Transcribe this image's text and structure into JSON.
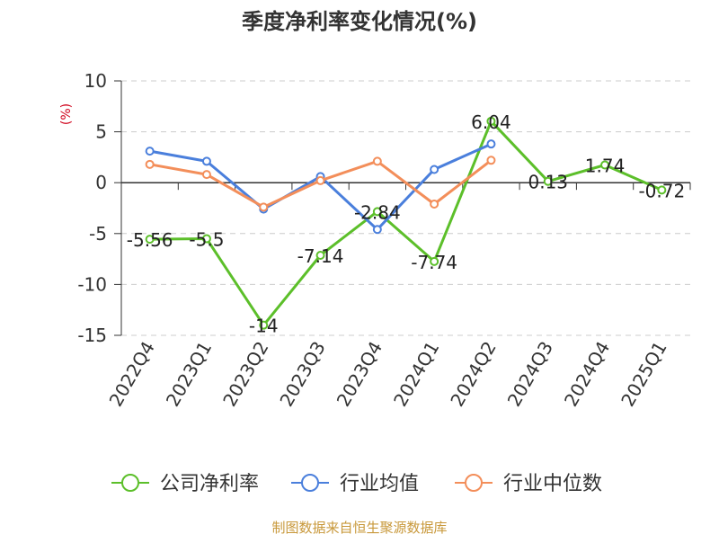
{
  "chart_data": {
    "type": "line",
    "title": "季度净利率变化情况(%)",
    "ylabel": "(%)",
    "xlabel": "",
    "categories": [
      "2022Q4",
      "2023Q1",
      "2023Q2",
      "2023Q3",
      "2023Q4",
      "2024Q1",
      "2024Q2",
      "2024Q3",
      "2024Q4",
      "2025Q1"
    ],
    "ylim": [
      -15,
      10
    ],
    "yticks": [
      -15,
      -10,
      -5,
      0,
      5,
      10
    ],
    "ytick_labels": [
      "-15",
      "-10",
      "-5",
      "0",
      "5",
      "10"
    ],
    "grid": "horizontal dashed",
    "legend_position": "bottom",
    "series": [
      {
        "name": "公司净利率",
        "color": "#5cbf2a",
        "values": [
          -5.56,
          -5.5,
          -14,
          -7.14,
          -2.84,
          -7.74,
          6.04,
          0.13,
          1.74,
          -0.72
        ],
        "labels": [
          "-5.56",
          "-5.5",
          "-14",
          "-7.14",
          "-2.84",
          "-7.74",
          "6.04",
          "0.13",
          "1.74",
          "-0.72"
        ]
      },
      {
        "name": "行业均值",
        "color": "#4a7fdc",
        "values": [
          3.1,
          2.1,
          -2.6,
          0.6,
          -4.6,
          1.3,
          3.8,
          null,
          null,
          null
        ]
      },
      {
        "name": "行业中位数",
        "color": "#f38e5a",
        "values": [
          1.8,
          0.8,
          -2.4,
          0.2,
          2.1,
          -2.1,
          2.2,
          null,
          null,
          null
        ]
      }
    ]
  },
  "footer": {
    "source": "制图数据来自恒生聚源数据库"
  }
}
